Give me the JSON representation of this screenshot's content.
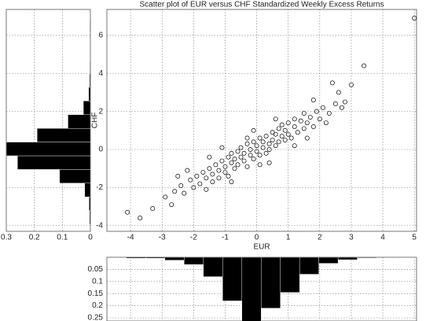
{
  "chart_data": [
    {
      "type": "scatter",
      "title": "Scatter plot of EUR versus CHF Standardized Weekly Excess Returns",
      "x_label": "EUR",
      "y_label": "CHF",
      "color": "#000000",
      "grid": true,
      "show_xtick_labels": true,
      "show_ytick_labels": true,
      "xlim": [
        -4.75,
        5.07
      ],
      "ylim": [
        -4.3,
        7.36
      ],
      "xticks": [
        -4,
        -3,
        -2,
        -1,
        0,
        1,
        2,
        3,
        4,
        5
      ],
      "yticks": [
        -4,
        -2,
        0,
        2,
        4,
        6
      ],
      "x": [
        -4.1,
        -3.7,
        -3.3,
        -2.9,
        -2.7,
        -2.6,
        -2.4,
        -2.3,
        -2.1,
        -2.0,
        -1.9,
        -1.8,
        -1.7,
        -1.6,
        -1.6,
        -1.5,
        -1.4,
        -1.4,
        -1.3,
        -1.2,
        -1.2,
        -1.1,
        -1.0,
        -1.0,
        -0.9,
        -0.9,
        -0.8,
        -0.8,
        -0.7,
        -0.7,
        -0.6,
        -0.6,
        -0.5,
        -0.5,
        -0.4,
        -0.4,
        -0.3,
        -0.3,
        -0.2,
        -0.2,
        -0.1,
        -0.1,
        0.0,
        0.0,
        0.1,
        0.1,
        0.2,
        0.2,
        0.3,
        0.3,
        0.4,
        0.4,
        0.5,
        0.5,
        0.6,
        0.6,
        0.7,
        0.7,
        0.8,
        0.8,
        0.9,
        0.9,
        1.0,
        1.0,
        1.1,
        1.2,
        1.2,
        1.3,
        1.4,
        1.5,
        1.5,
        1.6,
        1.7,
        1.8,
        1.9,
        2.0,
        2.1,
        2.2,
        2.3,
        2.4,
        2.5,
        2.6,
        2.7,
        2.8,
        3.0,
        3.4,
        5.0,
        -0.3,
        0.1,
        -1.5,
        1.2,
        -2.2,
        0.6,
        -0.8,
        1.8,
        -0.1,
        0.4,
        -1.1,
        1.6,
        -2.5
      ],
      "y": [
        -3.3,
        -3.6,
        -3.1,
        -2.5,
        -2.9,
        -2.2,
        -1.9,
        -2.3,
        -1.6,
        -2.0,
        -1.4,
        -1.8,
        -1.2,
        -2.1,
        -1.5,
        -1.0,
        -1.7,
        -1.3,
        -0.8,
        -1.1,
        -1.5,
        -0.6,
        -1.2,
        -0.9,
        -0.4,
        -1.4,
        -0.7,
        -0.2,
        -1.0,
        -0.5,
        -0.1,
        -0.8,
        -0.4,
        0.1,
        -0.6,
        -0.2,
        0.3,
        -0.9,
        -0.3,
        0.0,
        0.4,
        -0.5,
        -0.1,
        0.2,
        0.6,
        -0.3,
        0.1,
        0.4,
        -0.2,
        0.7,
        0.3,
        0.0,
        0.9,
        0.5,
        0.2,
        0.8,
        1.1,
        0.4,
        0.7,
        1.3,
        0.5,
        1.0,
        1.4,
        0.8,
        0.6,
        1.2,
        1.6,
        0.9,
        1.5,
        1.1,
        1.9,
        1.4,
        1.7,
        1.2,
        2.0,
        1.6,
        2.2,
        1.4,
        1.9,
        3.5,
        2.4,
        3.0,
        2.2,
        2.5,
        3.4,
        4.4,
        6.9,
        0.6,
        -0.8,
        -0.4,
        0.2,
        -1.1,
        1.6,
        -1.7,
        2.6,
        1.0,
        -0.7,
        0.1,
        0.6,
        -1.4
      ]
    },
    {
      "type": "histogram",
      "orientation": "horizontal",
      "color": "#000000",
      "grid": true,
      "show_xtick_labels": true,
      "show_ytick_labels": false,
      "xlim": [
        0.3,
        0
      ],
      "ylim": [
        -4.3,
        7.36
      ],
      "xticks": [
        0.3,
        0.2,
        0.1,
        0
      ],
      "yticks": [
        -4,
        -2,
        0,
        2,
        4,
        6
      ],
      "bins": [
        -3.93,
        -3.21,
        -2.49,
        -1.77,
        -1.05,
        -0.33,
        0.39,
        1.11,
        1.83,
        2.55,
        3.27,
        3.99,
        4.71,
        5.43,
        6.15,
        6.87
      ],
      "values": [
        0.003,
        0.005,
        0.02,
        0.11,
        0.26,
        0.3,
        0.19,
        0.08,
        0.025,
        0.006,
        0.003,
        0.002,
        0,
        0,
        0.002
      ]
    },
    {
      "type": "histogram",
      "orientation": "vertical",
      "color": "#000000",
      "grid": true,
      "show_xtick_labels": false,
      "show_ytick_labels": true,
      "xlim": [
        -4.75,
        5.07
      ],
      "ylim": [
        0.263,
        0
      ],
      "xticks": [
        -4,
        -3,
        -2,
        -1,
        0,
        1,
        2,
        3,
        4,
        5
      ],
      "yticks": [
        0.05,
        0.1,
        0.15,
        0.2,
        0.25
      ],
      "bins": [
        -4.13,
        -3.52,
        -2.91,
        -2.3,
        -1.69,
        -1.08,
        -0.47,
        0.14,
        0.75,
        1.36,
        1.97,
        2.58,
        3.19,
        3.8,
        4.41,
        5.02
      ],
      "values": [
        0.004,
        0.004,
        0.012,
        0.03,
        0.08,
        0.18,
        0.27,
        0.21,
        0.145,
        0.07,
        0.025,
        0.01,
        0.003,
        0,
        0.002
      ]
    }
  ]
}
